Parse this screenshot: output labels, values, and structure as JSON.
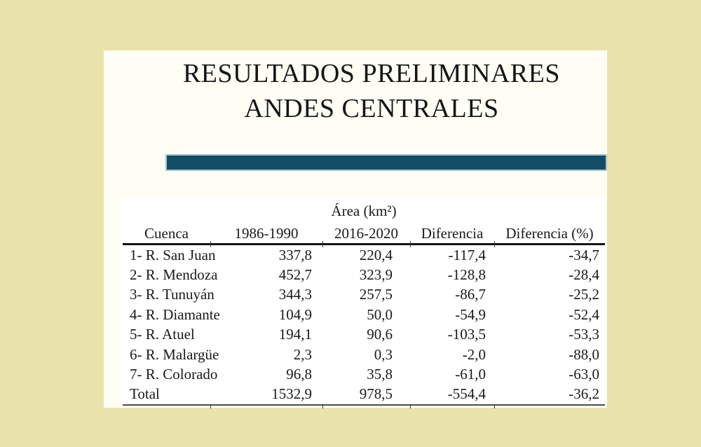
{
  "colors": {
    "page_background": "#e9e2aa",
    "slide_background": "#fffef4",
    "table_background": "#ffffff",
    "accent_bar": "#134d66",
    "accent_bar_border": "#a9c6d4",
    "text": "#1a1a1a"
  },
  "slide": {
    "title_line1": "RESULTADOS PRELIMINARES",
    "title_line2": "ANDES CENTRALES"
  },
  "table": {
    "area_header": "Área (km²)",
    "columns": [
      "Cuenca",
      "1986-1990",
      "2016-2020",
      "Diferencia",
      "Diferencia (%)"
    ],
    "rows": [
      [
        "1- R. San Juan",
        "337,8",
        "220,4",
        "-117,4",
        "-34,7"
      ],
      [
        "2- R. Mendoza",
        "452,7",
        "323,9",
        "-128,8",
        "-28,4"
      ],
      [
        "3- R. Tunuyán",
        "344,3",
        "257,5",
        "-86,7",
        "-25,2"
      ],
      [
        "4- R. Diamante",
        "104,9",
        "50,0",
        "-54,9",
        "-52,4"
      ],
      [
        "5- R. Atuel",
        "194,1",
        "90,6",
        "-103,5",
        "-53,3"
      ],
      [
        "6- R. Malargüe",
        "2,3",
        "0,3",
        "-2,0",
        "-88,0"
      ],
      [
        "7- R. Colorado",
        "96,8",
        "35,8",
        "-61,0",
        "-63,0"
      ]
    ],
    "total_row": [
      "Total",
      "1532,9",
      "978,5",
      "-554,4",
      "-36,2"
    ]
  }
}
